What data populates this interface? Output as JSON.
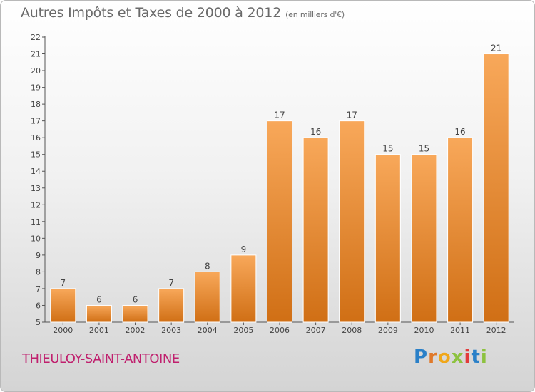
{
  "header": {
    "title": "Autres Impôts et Taxes de 2000 à 2012",
    "subtitle": "(en milliers d'€)"
  },
  "footer": {
    "city": "THIEULOY-SAINT-ANTOINE",
    "brand_letters": [
      "P",
      "r",
      "o",
      "x",
      "i",
      "t",
      "i"
    ]
  },
  "colors": {
    "bar_top": "#f8a85a",
    "bar_bottom": "#d06f15",
    "brand": [
      "#2a80c8",
      "#e0792a",
      "#f0a71a",
      "#8dc23f",
      "#e23b3b",
      "#2a80c8",
      "#8dc23f"
    ]
  },
  "chart_data": {
    "type": "bar",
    "title": "Autres Impôts et Taxes de 2000 à 2012",
    "subtitle": "(en milliers d'€)",
    "categories": [
      "2000",
      "2001",
      "2002",
      "2003",
      "2004",
      "2005",
      "2006",
      "2007",
      "2008",
      "2009",
      "2010",
      "2011",
      "2012"
    ],
    "values": [
      7,
      6,
      6,
      7,
      8,
      9,
      17,
      16,
      17,
      15,
      15,
      16,
      21
    ],
    "ylim": [
      5,
      22
    ],
    "yticks": [
      5,
      6,
      7,
      8,
      9,
      10,
      11,
      12,
      13,
      14,
      15,
      16,
      17,
      18,
      19,
      20,
      21,
      22
    ],
    "grid": false,
    "xlabel": "",
    "ylabel": ""
  }
}
